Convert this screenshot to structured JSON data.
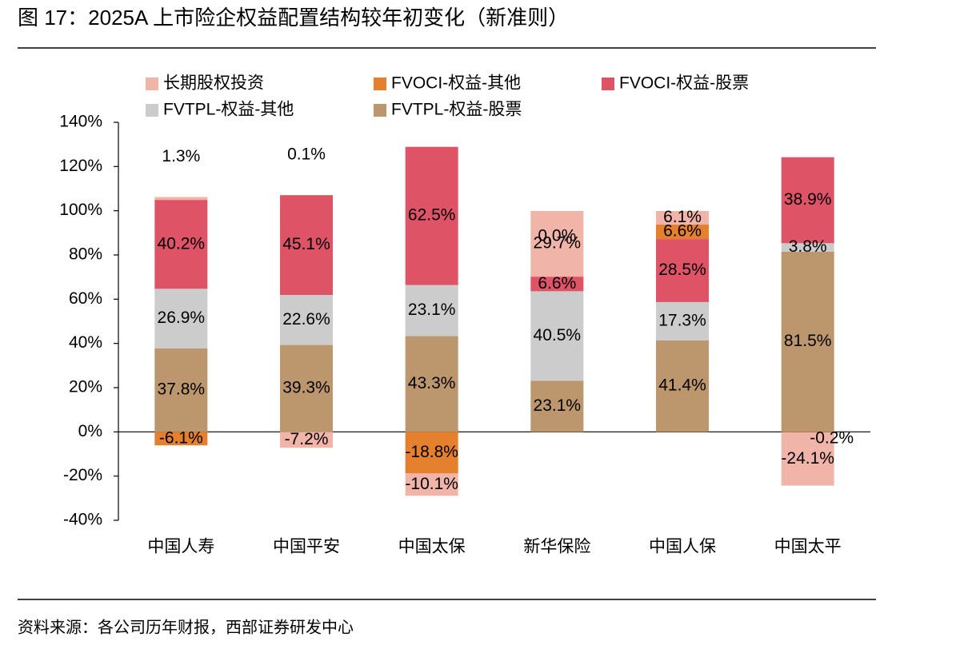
{
  "chart_data": {
    "type": "stacked-bar",
    "title": "图 17：2025A 上市险企权益配置结构较年初变化（新准则）",
    "categories": [
      "中国人寿",
      "中国平安",
      "中国太保",
      "新华保险",
      "中国人保",
      "中国太平"
    ],
    "series": [
      {
        "name": "长期股权投资",
        "color": "#F0B4A8",
        "values": [
          1.3,
          -7.2,
          -10.1,
          29.7,
          6.1,
          -24.1
        ],
        "value_labels": [
          "1.3%",
          "-7.2%",
          "-10.1%",
          "29.7%",
          "6.1%",
          "-24.1%"
        ]
      },
      {
        "name": "FVOCI-权益-其他",
        "color": "#E5802F",
        "values": [
          -6.1,
          0.1,
          -18.8,
          0.0,
          6.6,
          -0.2
        ],
        "value_labels": [
          "-6.1%",
          "0.1%",
          "-18.8%",
          "0.0%",
          "6.6%",
          "-0.2%"
        ]
      },
      {
        "name": "FVOCI-权益-股票",
        "color": "#DE5466",
        "values": [
          40.2,
          45.1,
          62.5,
          6.6,
          28.5,
          38.9
        ],
        "value_labels": [
          "40.2%",
          "45.1%",
          "62.5%",
          "6.6%",
          "28.5%",
          "38.9%"
        ]
      },
      {
        "name": "FVTPL-权益-其他",
        "color": "#CCCCCC",
        "values": [
          26.9,
          22.6,
          23.1,
          40.5,
          17.3,
          3.8
        ],
        "value_labels": [
          "26.9%",
          "22.6%",
          "23.1%",
          "40.5%",
          "17.3%",
          "3.8%"
        ]
      },
      {
        "name": "FVTPL-权益-股票",
        "color": "#BC966D",
        "values": [
          37.8,
          39.3,
          43.3,
          23.1,
          41.4,
          81.5
        ],
        "value_labels": [
          "37.8%",
          "39.3%",
          "43.3%",
          "23.1%",
          "41.4%",
          "81.5%"
        ]
      }
    ],
    "ylim": [
      -40,
      140
    ],
    "yticks": [
      {
        "value": -40,
        "label": "-40%"
      },
      {
        "value": -20,
        "label": "-20%"
      },
      {
        "value": 0,
        "label": "0%"
      },
      {
        "value": 20,
        "label": "20%"
      },
      {
        "value": 40,
        "label": "40%"
      },
      {
        "value": 60,
        "label": "60%"
      },
      {
        "value": 80,
        "label": "80%"
      },
      {
        "value": 100,
        "label": "100%"
      },
      {
        "value": 120,
        "label": "120%"
      },
      {
        "value": 140,
        "label": "140%"
      }
    ],
    "grid": false
  },
  "source": "资料来源：各公司历年财报，西部证券研发中心"
}
